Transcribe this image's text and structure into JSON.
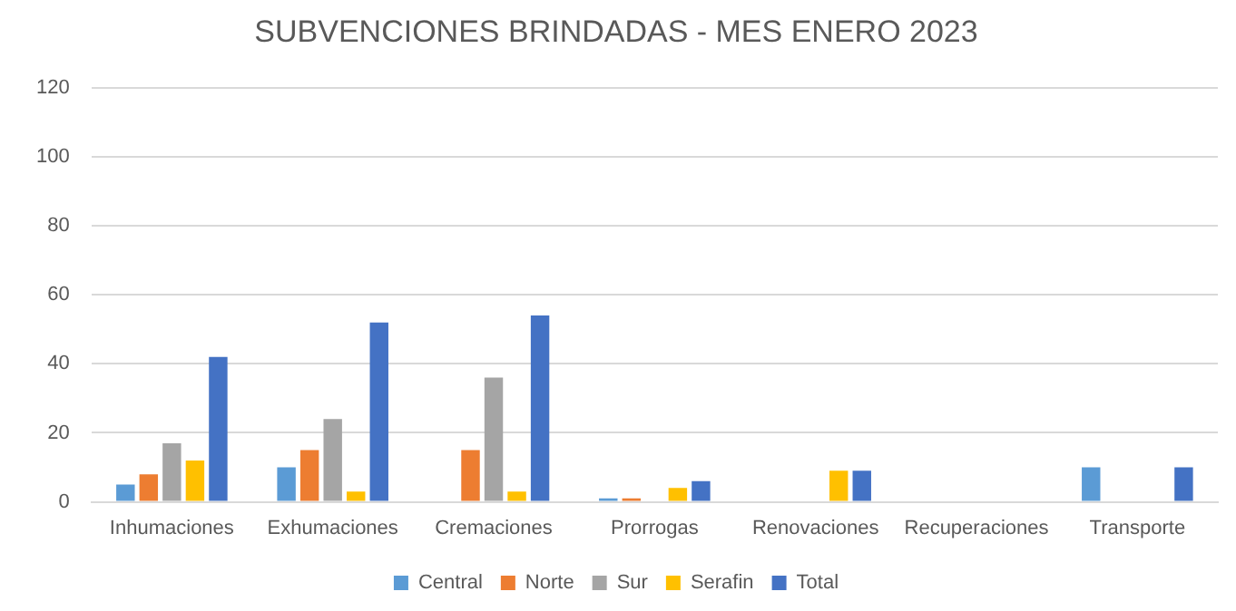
{
  "chart_data": {
    "type": "bar",
    "title": "SUBVENCIONES BRINDADAS - MES ENERO 2023",
    "categories": [
      "Inhumaciones",
      "Exhumaciones",
      "Cremaciones",
      "Prorrogas",
      "Renovaciones",
      "Recuperaciones",
      "Transporte"
    ],
    "series": [
      {
        "name": "Central",
        "color": "#5b9bd5",
        "values": [
          5,
          10,
          0,
          1,
          0,
          0,
          10
        ]
      },
      {
        "name": "Norte",
        "color": "#ed7d31",
        "values": [
          8,
          15,
          15,
          1,
          0,
          0,
          0
        ]
      },
      {
        "name": "Sur",
        "color": "#a5a5a5",
        "values": [
          17,
          24,
          36,
          0,
          0,
          0,
          0
        ]
      },
      {
        "name": "Serafin",
        "color": "#ffc000",
        "values": [
          12,
          3,
          3,
          4,
          9,
          0,
          0
        ]
      },
      {
        "name": "Total",
        "color": "#4472c4",
        "values": [
          42,
          52,
          54,
          6,
          9,
          0,
          10
        ]
      }
    ],
    "ylim": [
      0,
      120
    ],
    "yticks": [
      0,
      20,
      40,
      60,
      80,
      100,
      120
    ],
    "grid": "y",
    "legend": "bottom"
  }
}
